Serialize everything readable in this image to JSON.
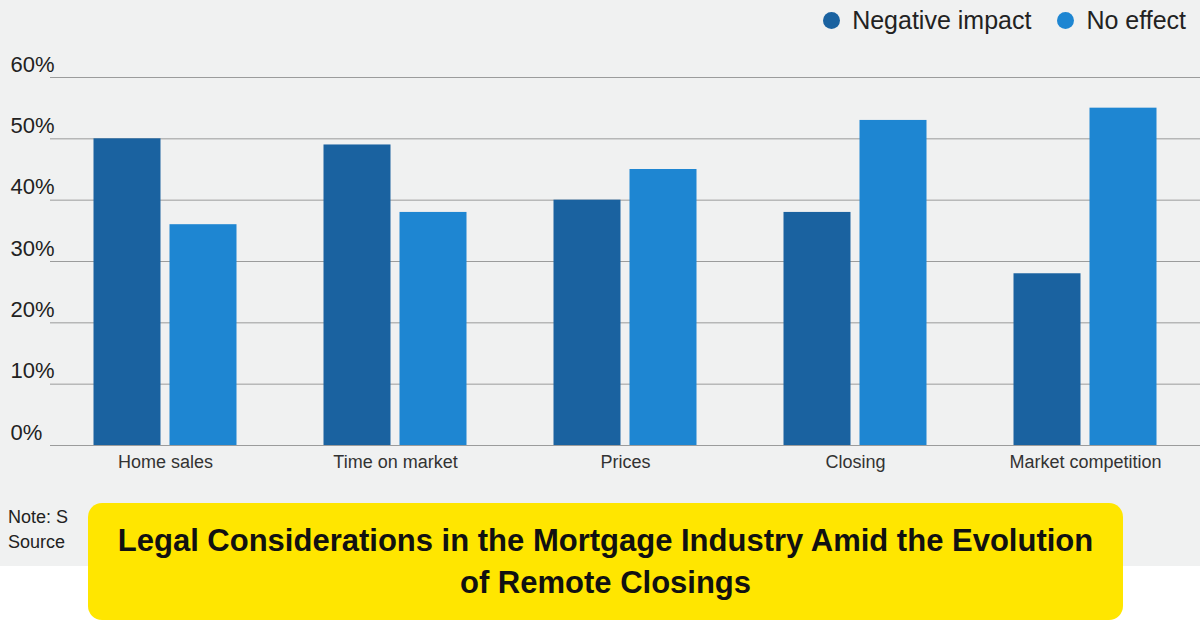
{
  "chart_data": {
    "type": "bar",
    "title": "Legal Considerations in the Mortgage Industry Amid the Evolution of Remote Closings",
    "categories": [
      "Home sales",
      "Time on market",
      "Prices",
      "Closing",
      "Market competition"
    ],
    "series": [
      {
        "name": "Negative impact",
        "color": "#1a62a0",
        "values": [
          50,
          49,
          40,
          38,
          28
        ]
      },
      {
        "name": "No effect",
        "color": "#1e86d2",
        "values": [
          36,
          38,
          45,
          53,
          55
        ]
      }
    ],
    "ylim": [
      0,
      60
    ],
    "yticks": [
      {
        "value": 0,
        "label": "0%"
      },
      {
        "value": 10,
        "label": "10%"
      },
      {
        "value": 20,
        "label": "20%"
      },
      {
        "value": 30,
        "label": "30%"
      },
      {
        "value": 40,
        "label": "40%"
      },
      {
        "value": 50,
        "label": "50%"
      },
      {
        "value": 60,
        "label": "60%"
      }
    ],
    "grid": true,
    "legend": "top-right",
    "annotations": [
      "Note: S",
      "Source"
    ]
  }
}
